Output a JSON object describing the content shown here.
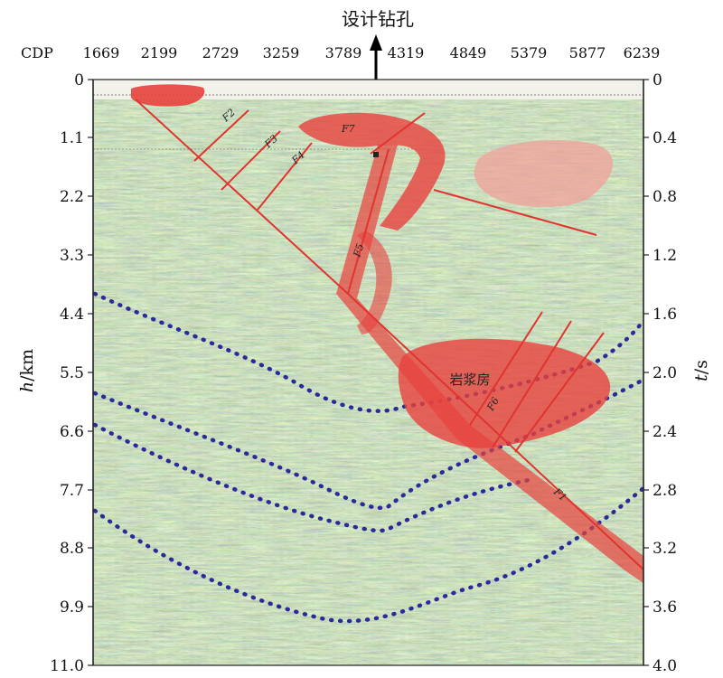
{
  "title": "设计钻孔",
  "cdp": {
    "label": "CDP",
    "ticks": [
      "1669",
      "2199",
      "2729",
      "3259",
      "3789",
      "4319",
      "4849",
      "5379",
      "5877",
      "6239"
    ]
  },
  "depth_axis": {
    "ticks": [
      "0",
      "1.1",
      "2.2",
      "3.3",
      "4.4",
      "5.5",
      "6.6",
      "7.7",
      "8.8",
      "9.9",
      "11.0"
    ],
    "title_var": "h",
    "title_unit": "/km"
  },
  "time_axis": {
    "ticks": [
      "0",
      "0.4",
      "0.8",
      "1.2",
      "1.6",
      "2.0",
      "2.4",
      "2.8",
      "3.2",
      "3.6",
      "4.0"
    ],
    "title_var": "t",
    "title_unit": "/s"
  },
  "faults": [
    "F1",
    "F2",
    "F3",
    "F4",
    "F5",
    "F6",
    "F7"
  ],
  "magma_label": "岩浆房",
  "colors": {
    "fault": "#e0342f",
    "magma": "#e8413d",
    "pink_body": "#f0a09a",
    "horizon": "#2a2a9a",
    "seismic_bg": "#c7d3a8"
  }
}
